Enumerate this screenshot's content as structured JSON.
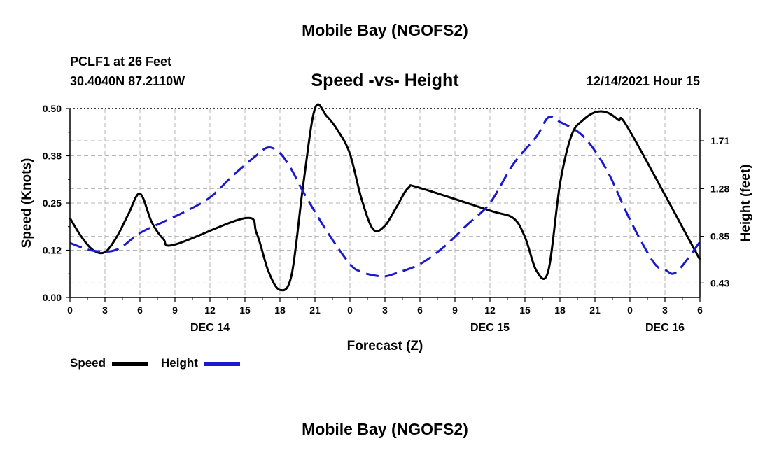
{
  "page": {
    "title_top": "Mobile Bay (NGOFS2)",
    "title_bottom": "Mobile Bay (NGOFS2)",
    "station_line": "PCLF1 at 26 Feet",
    "coords_line": "30.4040N  87.2110W",
    "datetime": "12/14/2021 Hour 15"
  },
  "legend": {
    "speed_label": "Speed",
    "height_label": "Height"
  },
  "colors": {
    "speed": "#000000",
    "height": "#1a1acc",
    "grid": "#b4b4b4"
  },
  "chart_data": {
    "type": "line",
    "title": "Speed -vs- Height",
    "xlabel": "Forecast (Z)",
    "ylabel_left": "Speed (Knots)",
    "ylabel_right": "Height (feet)",
    "x_range_hours": [
      0,
      54
    ],
    "xlim": [
      0,
      54
    ],
    "x_ticks": [
      0,
      3,
      6,
      9,
      12,
      15,
      18,
      21,
      24,
      27,
      30,
      33,
      36,
      39,
      42,
      45,
      48,
      51,
      54
    ],
    "x_tick_labels": [
      "0",
      "3",
      "6",
      "9",
      "12",
      "15",
      "18",
      "21",
      "0",
      "3",
      "6",
      "9",
      "12",
      "15",
      "18",
      "21",
      "0",
      "3",
      "6"
    ],
    "day_labels": [
      {
        "hour": 12,
        "label": "DEC 14"
      },
      {
        "hour": 36,
        "label": "DEC 15"
      },
      {
        "hour": 51,
        "label": "DEC 16"
      }
    ],
    "ylim_left": [
      0,
      0.5
    ],
    "y_ticks_left": [
      0.0,
      0.125,
      0.25,
      0.375,
      0.5
    ],
    "y_tick_labels_left": [
      "0.00",
      "0.12",
      "0.25",
      "0.38",
      "0.50"
    ],
    "ylim_right": [
      0.3,
      2.0
    ],
    "y_ticks_right": [
      0.43,
      0.85,
      1.28,
      1.71
    ],
    "y_tick_labels_right": [
      "0.43",
      "0.85",
      "1.28",
      "1.71"
    ],
    "grid": true,
    "series": [
      {
        "name": "Speed",
        "axis": "left",
        "style": "solid",
        "x": [
          0,
          1,
          2,
          3,
          4,
          5,
          6,
          7,
          8,
          9,
          15,
          16,
          17,
          18,
          19,
          20,
          21,
          22,
          23,
          24,
          25,
          26,
          27,
          28,
          29,
          30,
          36,
          38,
          39,
          40,
          41,
          42,
          43,
          44,
          45,
          46,
          47,
          48,
          54
        ],
        "values": [
          0.21,
          0.16,
          0.125,
          0.12,
          0.16,
          0.22,
          0.275,
          0.2,
          0.155,
          0.14,
          0.21,
          0.17,
          0.07,
          0.02,
          0.06,
          0.3,
          0.5,
          0.48,
          0.44,
          0.38,
          0.26,
          0.18,
          0.19,
          0.24,
          0.29,
          0.29,
          0.23,
          0.21,
          0.16,
          0.07,
          0.07,
          0.3,
          0.43,
          0.47,
          0.49,
          0.49,
          0.47,
          0.44,
          0.1
        ]
      },
      {
        "name": "Height",
        "axis": "right",
        "style": "dashed",
        "x": [
          0,
          2,
          4,
          6,
          8,
          10,
          12,
          14,
          16,
          17,
          18,
          19,
          20,
          22,
          24,
          25,
          26,
          27,
          28,
          30,
          32,
          34,
          36,
          38,
          40,
          41,
          42,
          44,
          46,
          48,
          50,
          51,
          52,
          54
        ],
        "values": [
          0.79,
          0.72,
          0.73,
          0.88,
          0.98,
          1.08,
          1.2,
          1.4,
          1.58,
          1.65,
          1.6,
          1.45,
          1.25,
          0.9,
          0.6,
          0.53,
          0.5,
          0.49,
          0.52,
          0.6,
          0.75,
          0.95,
          1.15,
          1.5,
          1.75,
          1.92,
          1.88,
          1.75,
          1.45,
          1.0,
          0.62,
          0.55,
          0.53,
          0.8
        ]
      }
    ]
  }
}
